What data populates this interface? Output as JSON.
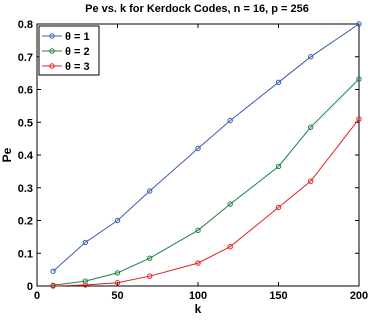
{
  "chart_data": {
    "type": "line",
    "title": "Pe vs. k for Kerdock Codes, n = 16, p = 256",
    "xlabel": "k",
    "ylabel": "Pe",
    "xlim": [
      0,
      200
    ],
    "ylim": [
      0,
      0.8
    ],
    "xticks": [
      "0",
      "50",
      "100",
      "150",
      "200"
    ],
    "yticks": [
      "0",
      "0.1",
      "0.2",
      "0.3",
      "0.4",
      "0.5",
      "0.6",
      "0.7",
      "0.8"
    ],
    "grid": false,
    "legend_position": "top-left",
    "x": [
      10,
      30,
      50,
      70,
      100,
      120,
      150,
      170,
      200
    ],
    "series": [
      {
        "name": "θ = 1",
        "color": "#3a5fb0",
        "marker": "circle",
        "values": [
          0.045,
          0.133,
          0.2,
          0.29,
          0.42,
          0.505,
          0.622,
          0.7,
          0.8
        ]
      },
      {
        "name": "θ = 2",
        "color": "#208040",
        "marker": "circle",
        "values": [
          0.002,
          0.015,
          0.04,
          0.085,
          0.17,
          0.25,
          0.365,
          0.485,
          0.632
        ]
      },
      {
        "name": "θ = 3",
        "color": "#e02020",
        "marker": "circle",
        "values": [
          0.0,
          0.003,
          0.01,
          0.03,
          0.07,
          0.12,
          0.24,
          0.32,
          0.51
        ]
      }
    ]
  }
}
